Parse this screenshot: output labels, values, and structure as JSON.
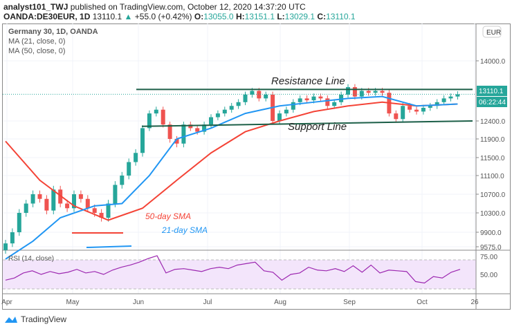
{
  "header": {
    "author": "analyst101_TWJ",
    "published": "published on TradingView.com, October 12, 2020 14:37:20 UTC",
    "symbol": "OANDA:DE30EUR, 1D",
    "last": "13110.1",
    "change": "+55.0 (+0.42%)",
    "o_label": "O:",
    "o": "13055.0",
    "h_label": "H:",
    "h": "13151.1",
    "l_label": "L:",
    "l": "13029.1",
    "c_label": "C:",
    "c": "13110.1"
  },
  "legend": {
    "title": "Germany 30, 1D, OANDA",
    "ma21": "MA (21, close, 0)",
    "ma50": "MA (50, close, 0)",
    "rsi": "RSI (14, close)"
  },
  "currency": "EUR",
  "price_tag": "13110.1",
  "countdown": "06:22:44",
  "footer": {
    "brand": "TradingView"
  },
  "colors": {
    "up": "#26a69a",
    "down": "#ef5350",
    "sma21": "#2196f3",
    "sma50": "#f44336",
    "trend": "#1b5e47",
    "rsi": "#9c27b0"
  },
  "chart_data": {
    "type": "candlestick",
    "title": "Germany 30, 1D, OANDA",
    "y_ticks": [
      14000,
      12400,
      11900,
      11500,
      11100,
      10700,
      10300,
      9900,
      9575
    ],
    "y_tick_labels": [
      "14000.0",
      "12400.0",
      "11900.0",
      "11500.0",
      "11100.0",
      "10700.0",
      "10300.0",
      "9900.0",
      "9575.0"
    ],
    "x_labels": [
      "Apr",
      "May",
      "Jun",
      "Jul",
      "Aug",
      "Sep",
      "Oct",
      "26"
    ],
    "closes": [
      9650,
      9900,
      10300,
      10500,
      10700,
      10600,
      10350,
      10800,
      10500,
      10400,
      10700,
      10600,
      10400,
      10300,
      10200,
      10500,
      10900,
      11100,
      11400,
      11600,
      12200,
      12600,
      12700,
      12300,
      11900,
      11800,
      12300,
      12200,
      12100,
      12300,
      12500,
      12600,
      12700,
      12800,
      12900,
      13100,
      13200,
      13000,
      13100,
      12400,
      12600,
      12700,
      12900,
      13000,
      12950,
      13050,
      13000,
      12800,
      12900,
      13100,
      13300,
      13050,
      13200,
      13150,
      13200,
      13150,
      12600,
      12450,
      12800,
      12700,
      12650,
      12750,
      12800,
      12900,
      13000,
      13050,
      13110.1
    ],
    "sma21": [
      [
        0,
        9300
      ],
      [
        4,
        9700
      ],
      [
        8,
        10200
      ],
      [
        13,
        10450
      ],
      [
        17,
        10500
      ],
      [
        21,
        11100
      ],
      [
        25,
        11900
      ],
      [
        30,
        12200
      ],
      [
        35,
        12600
      ],
      [
        40,
        12800
      ],
      [
        45,
        12900
      ],
      [
        50,
        13000
      ],
      [
        55,
        13050
      ],
      [
        60,
        12800
      ],
      [
        66,
        12850
      ]
    ],
    "sma50": [
      [
        0,
        11850
      ],
      [
        5,
        11000
      ],
      [
        10,
        10450
      ],
      [
        15,
        10150
      ],
      [
        20,
        10400
      ],
      [
        25,
        11000
      ],
      [
        30,
        11600
      ],
      [
        35,
        12100
      ],
      [
        40,
        12400
      ],
      [
        45,
        12650
      ],
      [
        50,
        12800
      ],
      [
        55,
        12900
      ],
      [
        60,
        12800
      ],
      [
        66,
        12850
      ]
    ],
    "resistance": {
      "label": "Resistance Line",
      "value": 13240
    },
    "support": {
      "label": "Support Line",
      "from": 12250,
      "to": 12400
    },
    "annotations": {
      "sma50": "50-day SMA",
      "sma21": "21-day SMA"
    },
    "rsi": {
      "ticks": [
        75,
        50
      ],
      "tick_labels": [
        "75.00",
        "50.00"
      ],
      "band": [
        70,
        30
      ],
      "values": [
        42,
        45,
        52,
        55,
        50,
        54,
        51,
        53,
        57,
        52,
        54,
        50,
        56,
        60,
        63,
        67,
        72,
        76,
        52,
        57,
        58,
        56,
        54,
        58,
        60,
        58,
        63,
        65,
        67,
        55,
        53,
        42,
        50,
        52,
        60,
        56,
        55,
        58,
        54,
        62,
        53,
        63,
        52,
        56,
        55,
        54,
        40,
        38,
        47,
        45,
        53,
        57
      ]
    }
  }
}
